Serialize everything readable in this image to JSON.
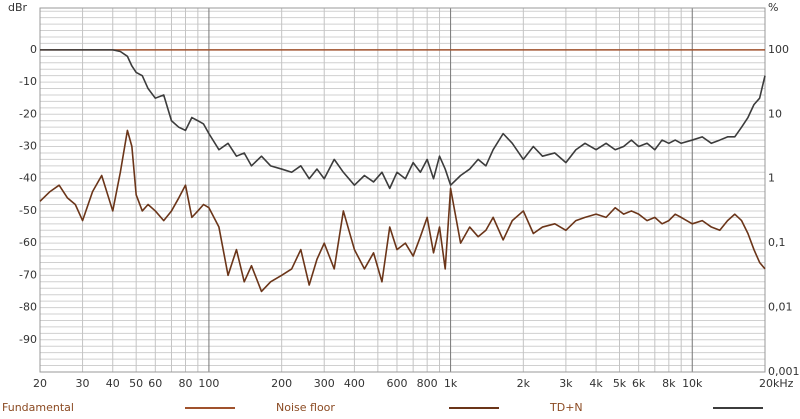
{
  "chart_data": {
    "type": "line",
    "y_label": "dBr",
    "y2_label": "%",
    "x_log": true,
    "y2_log": true,
    "xlim": [
      20,
      20000
    ],
    "ylim": [
      -100,
      13
    ],
    "y2lim": [
      0.001,
      447
    ],
    "xticks": [
      20,
      30,
      40,
      50,
      60,
      80,
      100,
      200,
      300,
      400,
      600,
      800,
      {
        "value": 1000,
        "label": "1k"
      },
      {
        "value": 2000,
        "label": "2k"
      },
      {
        "value": 3000,
        "label": "3k"
      },
      {
        "value": 4000,
        "label": "4k"
      },
      {
        "value": 5000,
        "label": "5k"
      },
      {
        "value": 6000,
        "label": "6k"
      },
      {
        "value": 8000,
        "label": "8k"
      },
      {
        "value": 10000,
        "label": "10k"
      },
      {
        "value": 20000,
        "label": "20kHz"
      }
    ],
    "yticks": [
      0,
      -10,
      -20,
      -30,
      -40,
      -50,
      -60,
      -70,
      -80,
      -90
    ],
    "y2ticks": [
      100,
      10,
      1,
      {
        "value": 0.1,
        "label": "0,1"
      },
      {
        "value": 0.01,
        "label": "0,01"
      },
      {
        "value": 0.001,
        "label": "0,001"
      }
    ],
    "xgrid": [
      20,
      30,
      40,
      50,
      60,
      70,
      80,
      90,
      100,
      200,
      300,
      400,
      500,
      600,
      700,
      800,
      900,
      1000,
      2000,
      3000,
      4000,
      5000,
      6000,
      7000,
      8000,
      9000,
      10000,
      20000
    ],
    "ygrid": [
      12,
      10,
      8,
      6,
      4,
      2,
      0,
      -2,
      -4,
      -6,
      -8,
      -10,
      -12,
      -14,
      -16,
      -18,
      -20,
      -22,
      -24,
      -26,
      -28,
      -30,
      -32,
      -34,
      -36,
      -38,
      -40,
      -42,
      -44,
      -46,
      -48,
      -50,
      -52,
      -54,
      -56,
      -58,
      -60,
      -62,
      -64,
      -66,
      -68,
      -70,
      -72,
      -74,
      -76,
      -78,
      -80,
      -82,
      -84,
      -86,
      -88,
      -90,
      -92,
      -94,
      -96,
      -98,
      -100
    ],
    "series": [
      {
        "name": "Fundamental",
        "color": "#a0522d",
        "x": [
          20,
          20000
        ],
        "values": [
          0,
          0
        ]
      },
      {
        "name": "Noise floor",
        "color": "#6b3519",
        "x": [
          20,
          22,
          24,
          26,
          28,
          30,
          33,
          36,
          40,
          43,
          46,
          48,
          50,
          53,
          56,
          60,
          65,
          70,
          75,
          80,
          85,
          90,
          95,
          100,
          110,
          120,
          130,
          140,
          150,
          165,
          180,
          200,
          220,
          240,
          260,
          280,
          300,
          330,
          360,
          400,
          440,
          480,
          520,
          560,
          600,
          650,
          700,
          750,
          800,
          850,
          900,
          950,
          1000,
          1100,
          1200,
          1300,
          1400,
          1500,
          1650,
          1800,
          2000,
          2200,
          2400,
          2700,
          3000,
          3300,
          3600,
          4000,
          4400,
          4800,
          5200,
          5600,
          6000,
          6500,
          7000,
          7500,
          8000,
          8500,
          9000,
          10000,
          11000,
          12000,
          13000,
          14000,
          15000,
          16000,
          17000,
          18000,
          19000,
          20000
        ],
        "values": [
          -47,
          -44,
          -42,
          -46,
          -48,
          -53,
          -44,
          -39,
          -50,
          -38,
          -25,
          -30,
          -45,
          -50,
          -48,
          -50,
          -53,
          -50,
          -46,
          -42,
          -52,
          -50,
          -48,
          -49,
          -55,
          -70,
          -62,
          -72,
          -67,
          -75,
          -72,
          -70,
          -68,
          -62,
          -73,
          -65,
          -60,
          -68,
          -50,
          -62,
          -68,
          -63,
          -72,
          -55,
          -62,
          -60,
          -64,
          -58,
          -52,
          -63,
          -55,
          -68,
          -43,
          -60,
          -55,
          -58,
          -56,
          -52,
          -59,
          -53,
          -50,
          -57,
          -55,
          -54,
          -56,
          -53,
          -52,
          -51,
          -52,
          -49,
          -51,
          -50,
          -51,
          -53,
          -52,
          -54,
          -53,
          -51,
          -52,
          -54,
          -53,
          -55,
          -56,
          -53,
          -51,
          -53,
          -57,
          -62,
          -66,
          -68
        ]
      },
      {
        "name": "TD+N",
        "color": "#3c3c3c",
        "x": [
          20,
          22,
          24,
          26,
          28,
          30,
          33,
          36,
          40,
          43,
          46,
          48,
          50,
          53,
          56,
          60,
          65,
          70,
          75,
          80,
          85,
          90,
          95,
          100,
          110,
          120,
          130,
          140,
          150,
          165,
          180,
          200,
          220,
          240,
          260,
          280,
          300,
          330,
          360,
          400,
          440,
          480,
          520,
          560,
          600,
          650,
          700,
          750,
          800,
          850,
          900,
          950,
          1000,
          1100,
          1200,
          1300,
          1400,
          1500,
          1650,
          1800,
          2000,
          2200,
          2400,
          2700,
          3000,
          3300,
          3600,
          4000,
          4400,
          4800,
          5200,
          5600,
          6000,
          6500,
          7000,
          7500,
          8000,
          8500,
          9000,
          10000,
          11000,
          12000,
          13000,
          14000,
          15000,
          16000,
          17000,
          18000,
          19000,
          20000
        ],
        "values": [
          0,
          0,
          0,
          0,
          0,
          0,
          0,
          0,
          0,
          -0.5,
          -2,
          -5,
          -7,
          -8,
          -12,
          -15,
          -14,
          -22,
          -24,
          -25,
          -21,
          -22,
          -23,
          -26,
          -31,
          -29,
          -33,
          -32,
          -36,
          -33,
          -36,
          -37,
          -38,
          -36,
          -40,
          -37,
          -40,
          -34,
          -38,
          -42,
          -39,
          -41,
          -38,
          -43,
          -38,
          -40,
          -35,
          -38,
          -34,
          -40,
          -33,
          -37,
          -42,
          -39,
          -37,
          -34,
          -36,
          -31,
          -26,
          -29,
          -34,
          -30,
          -33,
          -32,
          -35,
          -31,
          -29,
          -31,
          -29,
          -31,
          -30,
          -28,
          -30,
          -29,
          -31,
          -28,
          -29,
          -28,
          -29,
          -28,
          -27,
          -29,
          -28,
          -27,
          -27,
          -24,
          -21,
          -17,
          -15,
          -8
        ]
      }
    ]
  }
}
